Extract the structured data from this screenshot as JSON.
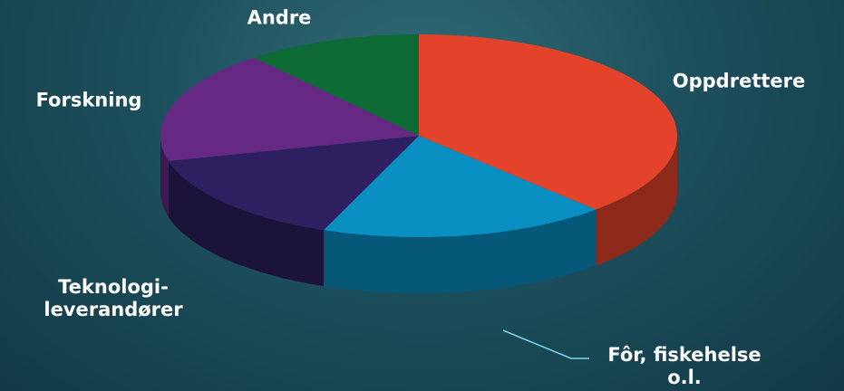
{
  "chart_data": {
    "type": "pie",
    "categories": [
      "Oppdrettere",
      "Fôr, fiskehelse\no.l.",
      "Teknologi-\nleverandører",
      "Forskning",
      "Andre"
    ],
    "values": [
      38,
      18,
      15,
      18,
      11
    ],
    "colors": [
      "#e2432a",
      "#0a8fc2",
      "#2e2060",
      "#652883",
      "#0d6a35"
    ]
  }
}
